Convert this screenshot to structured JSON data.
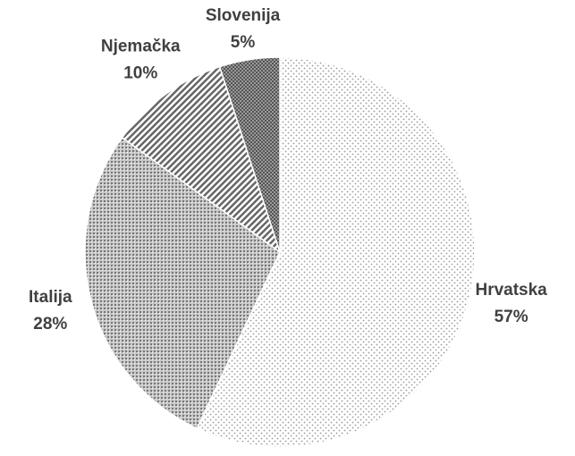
{
  "chart_data": {
    "type": "pie",
    "categories": [
      "Hrvatska",
      "Italija",
      "Njemačka",
      "Slovenija"
    ],
    "values": [
      57,
      28,
      10,
      5
    ],
    "value_labels": [
      "57%",
      "28%",
      "10%",
      "5%"
    ]
  }
}
